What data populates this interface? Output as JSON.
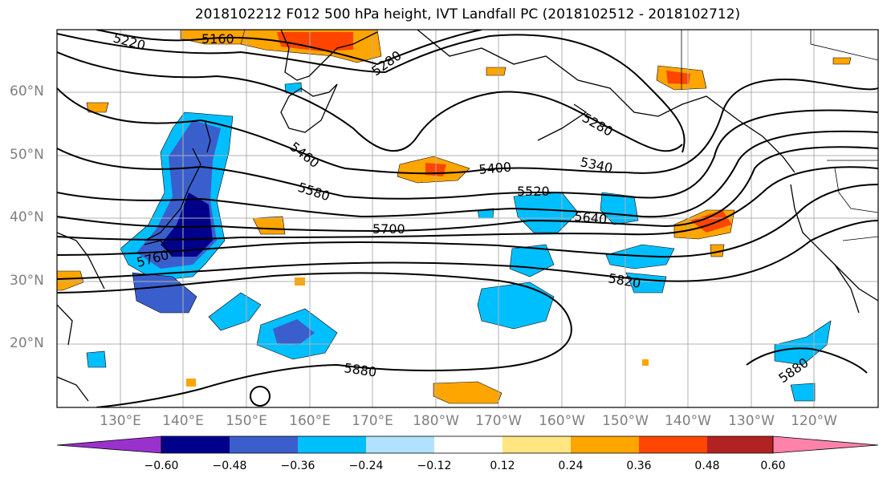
{
  "title": "2018102212 F012 500 hPa height, IVT Landfall PC (2018102512 - 2018102712)",
  "lat_labels": [
    {
      "text": "60°N",
      "lat": 60
    },
    {
      "text": "50°N",
      "lat": 50
    },
    {
      "text": "40°N",
      "lat": 40
    },
    {
      "text": "30°N",
      "lat": 30
    },
    {
      "text": "20°N",
      "lat": 20
    }
  ],
  "lon_labels": [
    "130°E",
    "140°E",
    "150°E",
    "160°E",
    "170°E",
    "180°W",
    "170°W",
    "160°W",
    "150°W",
    "140°W",
    "130°W",
    "120°W"
  ],
  "lon_values": [
    130,
    140,
    150,
    160,
    170,
    180,
    190,
    200,
    210,
    220,
    230,
    240
  ],
  "contour_labels": [
    "5220",
    "5160",
    "5280",
    "5460",
    "5280",
    "5400",
    "5340",
    "5580",
    "5520",
    "5640",
    "5700",
    "5760",
    "5820",
    "5880",
    "5880"
  ],
  "colorbar": {
    "ticks": [
      "−0.60",
      "−0.48",
      "−0.36",
      "−0.24",
      "−0.12",
      "0.12",
      "0.24",
      "0.36",
      "0.48",
      "0.60"
    ],
    "colors": [
      "#9932cc",
      "#00008b",
      "#3a5fcd",
      "#00bfff",
      "#b0e2ff",
      "#ffffff",
      "#ffe680",
      "#ffa500",
      "#ff4500",
      "#b22222",
      "#ff82ab"
    ]
  },
  "shade_colors": {
    "neg_light": "#b0e2ff",
    "neg_mid": "#00bfff",
    "neg_strong": "#3a5fcd",
    "neg_max": "#00008b",
    "pos_light": "#ffe680",
    "pos_mid": "#ffa500",
    "pos_strong": "#ff4500"
  }
}
